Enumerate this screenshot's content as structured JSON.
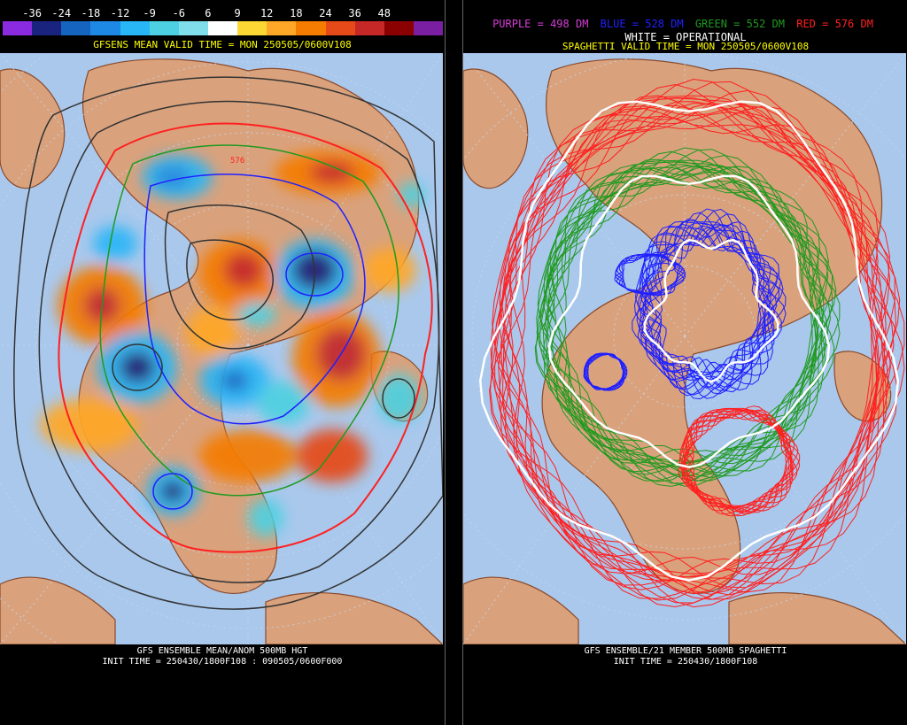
{
  "left_panel": {
    "scale_ticks": [
      "-36",
      "-24",
      "-18",
      "-12",
      "-9",
      "-6",
      "6",
      "9",
      "12",
      "18",
      "24",
      "36",
      "48"
    ],
    "scale_colors": [
      "#8a2be2",
      "#1a237e",
      "#1565c0",
      "#1e88e5",
      "#29b6f6",
      "#4dd0e1",
      "#80deea",
      "#ffffff",
      "#fdd835",
      "#ffa726",
      "#f57c00",
      "#e64a19",
      "#c62828",
      "#8b0000",
      "#7b1fa2"
    ],
    "valid_title": "GFSENS MEAN VALID TIME = MON 250505/0600V108",
    "footer_line1": "GFS ENSEMBLE MEAN/ANOM 500MB HGT",
    "footer_line2": "INIT TIME = 250430/1800F108 : 090505/0600F000",
    "contour_label": "576"
  },
  "right_panel": {
    "legend_purple": "PURPLE = 498 DM",
    "legend_blue": "BLUE = 528 DM",
    "legend_green": "GREEN = 552 DM",
    "legend_red": "RED = 576 DM",
    "legend_white": "WHITE = OPERATIONAL",
    "valid_title": "SPAGHETTI VALID TIME = MON 250505/0600V108",
    "footer_line1": "GFS ENSEMBLE/21 MEMBER 500MB SPAGHETTI",
    "footer_line2": "INIT TIME = 250430/1800F108"
  },
  "colors": {
    "ocean": "#a9c8ec",
    "land": "#d9a27d",
    "coast": "#8b4a2b",
    "grid": "#c6d7ee",
    "purple": "#d63dd6",
    "blue": "#2020ff",
    "green": "#1f9a1f",
    "red": "#ff2020",
    "white": "#ffffff"
  }
}
